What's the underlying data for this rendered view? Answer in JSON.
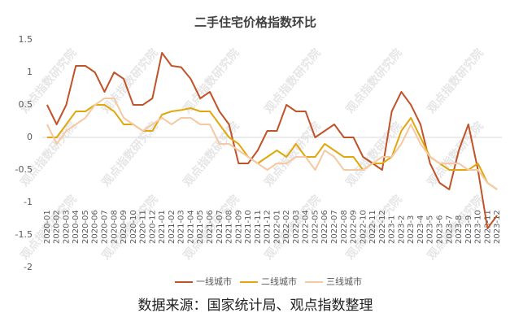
{
  "chart_data": {
    "type": "line",
    "title": "二手住宅价格指数环比",
    "categories": [
      "2020-01",
      "2020-02",
      "2020-03",
      "2020-04",
      "2020-05",
      "2020-06",
      "2020-07",
      "2020-08",
      "2020-09",
      "2020-10",
      "2020-11",
      "2020-12",
      "2021-01",
      "2021-02",
      "2021-03",
      "2021-04",
      "2021-05",
      "2021-06",
      "2021-07",
      "2021-08",
      "2021-09",
      "2021-10",
      "2021-11",
      "2021-12",
      "2022-01",
      "2022-02",
      "2022-03",
      "2022-04",
      "2022-05",
      "2022-06",
      "2022-07",
      "2022-08",
      "2022-09",
      "2022-10",
      "2022-11",
      "2022-12",
      "2023-1",
      "2023-2",
      "2023-3",
      "2023-4",
      "2023-5",
      "2023-6",
      "2023-7",
      "2023-8",
      "2023-9",
      "2023-10",
      "2023-11",
      "2023-12"
    ],
    "series": [
      {
        "name": "一线城市",
        "color": "#c0532a",
        "values": [
          0.5,
          0.2,
          0.5,
          1.1,
          1.1,
          1.0,
          0.7,
          1.0,
          0.9,
          0.5,
          0.5,
          0.6,
          1.3,
          1.1,
          1.08,
          0.9,
          0.6,
          0.7,
          0.4,
          0.2,
          -0.4,
          -0.4,
          -0.2,
          0.1,
          0.1,
          0.5,
          0.4,
          0.4,
          0.0,
          0.1,
          0.2,
          0.0,
          0.0,
          -0.3,
          -0.4,
          -0.5,
          0.4,
          0.7,
          0.5,
          0.2,
          -0.4,
          -0.7,
          -0.8,
          -0.2,
          0.2,
          -0.5,
          -1.4,
          -1.2
        ]
      },
      {
        "name": "二线城市",
        "color": "#e0a80e",
        "values": [
          0.0,
          0.0,
          0.2,
          0.4,
          0.4,
          0.5,
          0.5,
          0.4,
          0.2,
          0.2,
          0.1,
          0.1,
          0.35,
          0.4,
          0.42,
          0.45,
          0.4,
          0.4,
          0.2,
          0.0,
          -0.1,
          -0.3,
          -0.4,
          -0.3,
          -0.2,
          -0.3,
          -0.1,
          -0.3,
          -0.3,
          -0.1,
          -0.2,
          -0.3,
          -0.3,
          -0.5,
          -0.4,
          -0.4,
          -0.3,
          0.1,
          0.3,
          0.0,
          -0.3,
          -0.4,
          -0.5,
          -0.5,
          -0.5,
          -0.4,
          -0.7,
          -0.8
        ]
      },
      {
        "name": "三线城市",
        "color": "#f5c9a3",
        "values": [
          0.2,
          -0.1,
          0.1,
          0.2,
          0.3,
          0.5,
          0.6,
          0.6,
          0.3,
          0.2,
          0.1,
          0.2,
          0.3,
          0.2,
          0.3,
          0.3,
          0.2,
          0.2,
          -0.1,
          -0.1,
          -0.2,
          -0.3,
          -0.4,
          -0.5,
          -0.4,
          -0.4,
          -0.3,
          -0.3,
          -0.5,
          -0.2,
          -0.3,
          -0.5,
          -0.5,
          -0.5,
          -0.4,
          -0.3,
          -0.3,
          -0.1,
          0.2,
          -0.1,
          -0.3,
          -0.4,
          -0.4,
          -0.4,
          -0.5,
          -0.5,
          -0.7,
          -0.8
        ]
      }
    ],
    "ylim": [
      -2,
      1.5
    ],
    "yticks": [
      -2,
      -1.5,
      -1,
      -0.5,
      0,
      0.5,
      1,
      1.5
    ],
    "grid": false,
    "legend": "bottom",
    "watermark": "观点指数研究院",
    "source": "数据来源：国家统计局、观点指数整理"
  }
}
